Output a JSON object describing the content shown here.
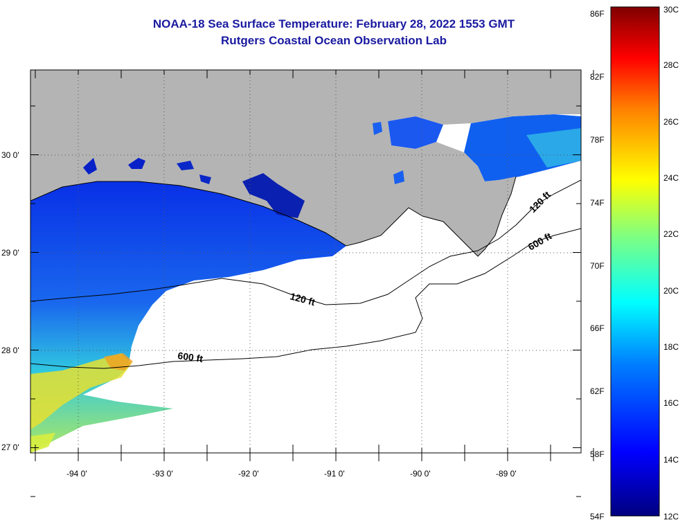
{
  "title": {
    "line1": "NOAA-18 Sea Surface Temperature:  February 28, 2022 1553 GMT",
    "line2": "Rutgers Coastal Ocean Observation Lab"
  },
  "map": {
    "lat_labels": [
      "30 0'",
      "29 0'",
      "28 0'",
      "27 0'"
    ],
    "lon_labels": [
      "-94 0'",
      "-93 0'",
      "-92 0'",
      "-91 0'",
      "-90 0'",
      "-89 0'"
    ],
    "contour_labels": [
      "120 ft",
      "600 ft",
      "120 ft",
      "600 ft"
    ],
    "colors": {
      "land": "#b4b4b4",
      "cloud": "#ffffff",
      "coast": "#000000"
    }
  },
  "colorbar": {
    "f_labels": [
      "86F",
      "82F",
      "78F",
      "74F",
      "70F",
      "66F",
      "62F",
      "58F",
      "54F"
    ],
    "c_labels": [
      "30C",
      "28C",
      "26C",
      "24C",
      "22C",
      "20C",
      "18C",
      "16C",
      "14C",
      "12C"
    ],
    "stops": [
      "#00007f",
      "#0000ff",
      "#0080ff",
      "#00ffff",
      "#80ff80",
      "#ffff00",
      "#ff8000",
      "#ff0000",
      "#7f0000"
    ]
  }
}
